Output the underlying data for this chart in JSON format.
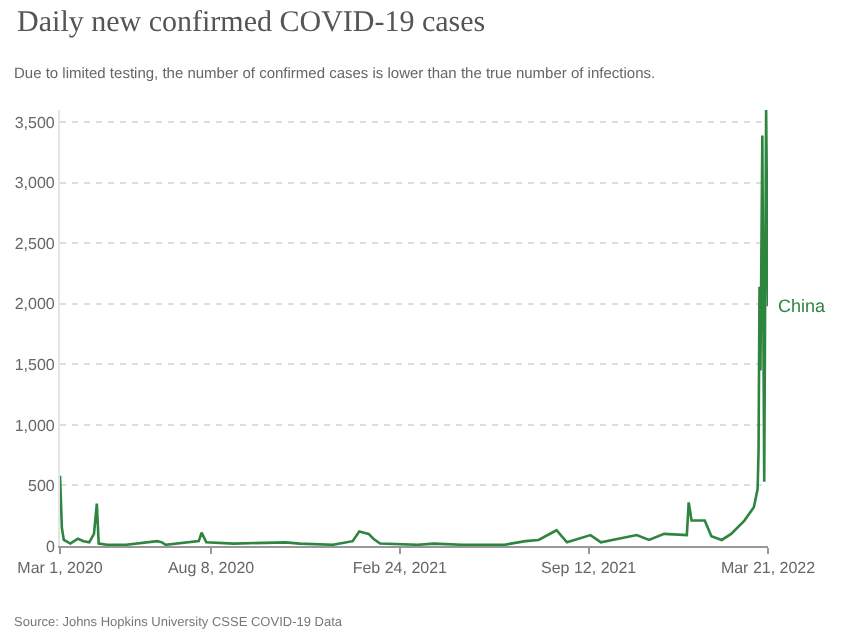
{
  "chart_data": {
    "type": "line",
    "title": "Daily new confirmed COVID-19 cases",
    "subtitle": "Due to limited testing, the number of confirmed cases is lower than the true number of infections.",
    "annotations": [
      "Source: Johns Hopkins University CSSE COVID-19 Data"
    ],
    "x": [
      "2020-03-01",
      "2020-03-03",
      "2020-03-05",
      "2020-03-12",
      "2020-03-18",
      "2020-03-20",
      "2020-03-26",
      "2020-04-01",
      "2020-04-06",
      "2020-04-09",
      "2020-04-11",
      "2020-04-20",
      "2020-05-10",
      "2020-06-12",
      "2020-06-17",
      "2020-06-21",
      "2020-07-26",
      "2020-07-29",
      "2020-08-03",
      "2020-09-01",
      "2020-10-26",
      "2020-11-10",
      "2020-12-15",
      "2021-01-05",
      "2021-01-12",
      "2021-01-17",
      "2021-01-22",
      "2021-01-27",
      "2021-02-03",
      "2021-03-15",
      "2021-04-01",
      "2021-05-01",
      "2021-06-15",
      "2021-07-07",
      "2021-07-21",
      "2021-08-09",
      "2021-08-20",
      "2021-09-14",
      "2021-09-25",
      "2021-11-02",
      "2021-11-15",
      "2021-12-01",
      "2021-12-25",
      "2021-12-27",
      "2021-12-30",
      "2022-01-13",
      "2022-01-20",
      "2022-01-31",
      "2022-02-10",
      "2022-02-24",
      "2022-03-06",
      "2022-03-10",
      "2022-03-11",
      "2022-03-12",
      "2022-03-13",
      "2022-03-15",
      "2022-03-17",
      "2022-03-19",
      "2022-03-21"
    ],
    "series": [
      {
        "name": "China",
        "color": "#2e8540",
        "values": [
          580,
          150,
          50,
          20,
          50,
          60,
          40,
          30,
          100,
          350,
          20,
          10,
          10,
          40,
          30,
          10,
          40,
          110,
          30,
          20,
          30,
          20,
          10,
          40,
          120,
          110,
          100,
          60,
          20,
          10,
          20,
          10,
          10,
          40,
          50,
          130,
          30,
          90,
          30,
          90,
          50,
          100,
          90,
          360,
          210,
          210,
          80,
          50,
          100,
          210,
          320,
          470,
          790,
          2140,
          1450,
          3390,
          530,
          3600,
          1980
        ]
      }
    ],
    "xlim": [
      "2020-03-01",
      "2022-03-21"
    ],
    "xticks": [
      {
        "value": "2020-03-01",
        "label": "Mar 1, 2020"
      },
      {
        "value": "2020-08-08",
        "label": "Aug 8, 2020"
      },
      {
        "value": "2021-02-24",
        "label": "Feb 24, 2021"
      },
      {
        "value": "2021-09-12",
        "label": "Sep 12, 2021"
      },
      {
        "value": "2022-03-21",
        "label": "Mar 21, 2022"
      }
    ],
    "ylim": [
      0,
      3600
    ],
    "yticks": [
      0,
      500,
      {
        "value": 1000,
        "label": "1,000"
      },
      {
        "value": 1500,
        "label": "1,500"
      },
      {
        "value": 2000,
        "label": "2,000"
      },
      {
        "value": 2500,
        "label": "2,500"
      },
      {
        "value": 3000,
        "label": "3,000"
      },
      {
        "value": 3500,
        "label": "3,500"
      }
    ],
    "grid": "y",
    "legend": false,
    "marker": "none",
    "line_style": "solid"
  }
}
